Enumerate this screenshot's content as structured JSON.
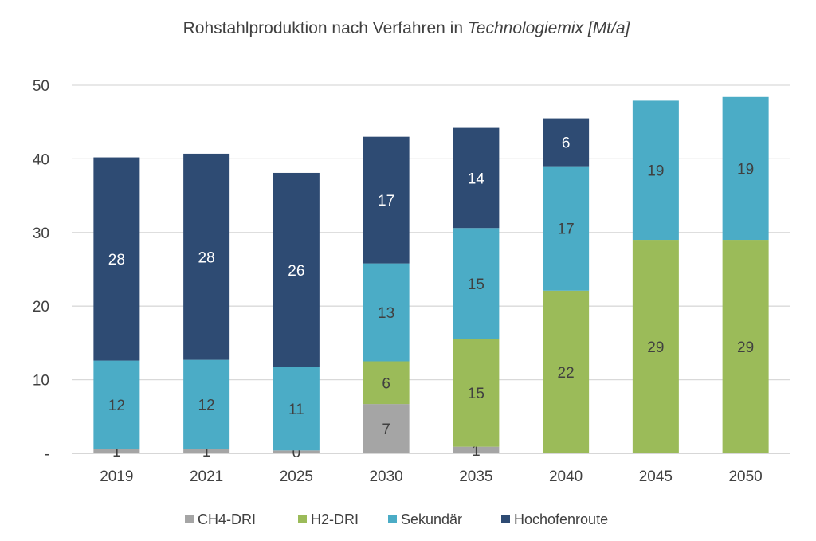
{
  "chart_data": {
    "type": "bar",
    "stacked": true,
    "title": "Rohstahlproduktion nach Verfahren in ",
    "title_italic": "Technologiemix [Mt/a]",
    "categories": [
      "2019",
      "2021",
      "2025",
      "2030",
      "2035",
      "2040",
      "2045",
      "2050"
    ],
    "ylim": [
      0,
      50
    ],
    "yticks": [
      0,
      10,
      20,
      30,
      40,
      50
    ],
    "ytick_labels": [
      "-",
      "10",
      "20",
      "30",
      "40",
      "50"
    ],
    "grid": true,
    "legend_position": "bottom",
    "series": [
      {
        "name": "CH4-DRI",
        "color": "#a5a5a5",
        "label_color": "#404040",
        "values": [
          0.6,
          0.6,
          0.4,
          6.7,
          0.9,
          0,
          0,
          0
        ],
        "labels": [
          "1",
          "1",
          "0",
          "7",
          "1",
          "",
          "",
          ""
        ]
      },
      {
        "name": "H2-DRI",
        "color": "#9bbb59",
        "label_color": "#404040",
        "values": [
          0,
          0,
          0,
          5.8,
          14.6,
          22.1,
          29,
          29
        ],
        "labels": [
          "",
          "",
          "",
          "6",
          "15",
          "22",
          "29",
          "29"
        ]
      },
      {
        "name": "Sekundär",
        "color": "#4bacc6",
        "label_color": "#404040",
        "values": [
          12,
          12.1,
          11.3,
          13.3,
          15.1,
          16.9,
          18.9,
          19.4
        ],
        "labels": [
          "12",
          "12",
          "11",
          "13",
          "15",
          "17",
          "19",
          "19"
        ]
      },
      {
        "name": "Hochofenroute",
        "color": "#2e4b73",
        "label_color": "#ffffff",
        "values": [
          27.6,
          28,
          26.4,
          17.2,
          13.6,
          6.5,
          0,
          0
        ],
        "labels": [
          "28",
          "28",
          "26",
          "17",
          "14",
          "6",
          "",
          ""
        ]
      }
    ]
  }
}
